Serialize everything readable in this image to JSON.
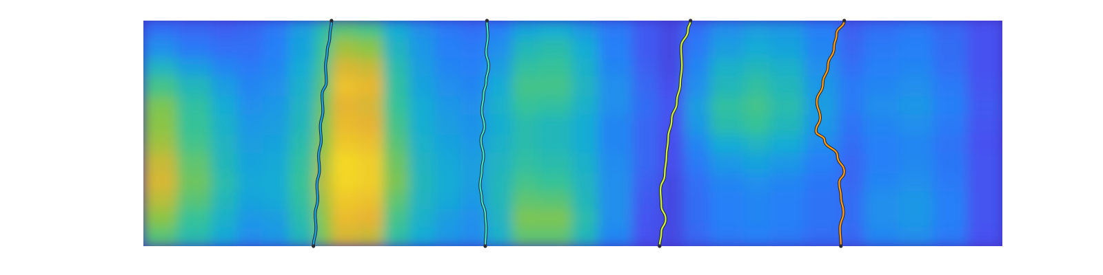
{
  "chart_data": {
    "type": "heatmap",
    "title": "",
    "xlabel": "",
    "ylabel": "",
    "colormap": "parula",
    "axes_visible": false,
    "grid": false,
    "legend": "none",
    "xlim": [
      0,
      1
    ],
    "ylim": [
      0,
      1
    ],
    "heatmap": {
      "columns": [
        0.0,
        0.04,
        0.08,
        0.11,
        0.14,
        0.17,
        0.2,
        0.22,
        0.25,
        0.28,
        0.31,
        0.34,
        0.37,
        0.4,
        0.43,
        0.46,
        0.5,
        0.53,
        0.57,
        0.6,
        0.63,
        0.66,
        0.7,
        0.73,
        0.77,
        0.81,
        0.84,
        0.88,
        0.92,
        0.96,
        1.0
      ],
      "rows": [
        0.0,
        0.08,
        0.17,
        0.25,
        0.34,
        0.42,
        0.51,
        0.59,
        0.68,
        0.76,
        0.84,
        0.92,
        1.0
      ],
      "values": [
        [
          0.25,
          0.22,
          0.2,
          0.22,
          0.28,
          0.4,
          0.55,
          0.65,
          0.62,
          0.45,
          0.35,
          0.28,
          0.25,
          0.3,
          0.42,
          0.45,
          0.38,
          0.28,
          0.18,
          0.12,
          0.25,
          0.35,
          0.4,
          0.38,
          0.3,
          0.2,
          0.25,
          0.28,
          0.22,
          0.15,
          0.12
        ],
        [
          0.35,
          0.28,
          0.25,
          0.25,
          0.3,
          0.42,
          0.6,
          0.75,
          0.72,
          0.5,
          0.38,
          0.3,
          0.28,
          0.35,
          0.52,
          0.55,
          0.45,
          0.3,
          0.18,
          0.12,
          0.28,
          0.4,
          0.45,
          0.42,
          0.32,
          0.22,
          0.28,
          0.3,
          0.24,
          0.15,
          0.12
        ],
        [
          0.5,
          0.4,
          0.32,
          0.28,
          0.32,
          0.45,
          0.62,
          0.82,
          0.8,
          0.55,
          0.4,
          0.32,
          0.3,
          0.4,
          0.58,
          0.6,
          0.48,
          0.32,
          0.2,
          0.12,
          0.32,
          0.48,
          0.52,
          0.48,
          0.35,
          0.25,
          0.3,
          0.32,
          0.25,
          0.15,
          0.12
        ],
        [
          0.62,
          0.52,
          0.4,
          0.32,
          0.35,
          0.48,
          0.65,
          0.88,
          0.85,
          0.58,
          0.42,
          0.35,
          0.32,
          0.45,
          0.62,
          0.62,
          0.5,
          0.35,
          0.22,
          0.14,
          0.35,
          0.52,
          0.58,
          0.52,
          0.38,
          0.28,
          0.32,
          0.35,
          0.28,
          0.16,
          0.12
        ],
        [
          0.7,
          0.58,
          0.45,
          0.35,
          0.38,
          0.5,
          0.68,
          0.84,
          0.82,
          0.6,
          0.45,
          0.38,
          0.35,
          0.48,
          0.6,
          0.58,
          0.48,
          0.35,
          0.24,
          0.16,
          0.4,
          0.58,
          0.62,
          0.55,
          0.4,
          0.28,
          0.35,
          0.38,
          0.3,
          0.18,
          0.12
        ],
        [
          0.72,
          0.6,
          0.48,
          0.38,
          0.4,
          0.52,
          0.7,
          0.86,
          0.84,
          0.62,
          0.46,
          0.4,
          0.36,
          0.46,
          0.55,
          0.52,
          0.45,
          0.32,
          0.22,
          0.15,
          0.38,
          0.55,
          0.6,
          0.52,
          0.38,
          0.26,
          0.32,
          0.35,
          0.28,
          0.16,
          0.12
        ],
        [
          0.75,
          0.62,
          0.5,
          0.4,
          0.42,
          0.55,
          0.72,
          0.9,
          0.88,
          0.65,
          0.48,
          0.42,
          0.38,
          0.48,
          0.55,
          0.52,
          0.45,
          0.32,
          0.22,
          0.14,
          0.32,
          0.45,
          0.5,
          0.45,
          0.34,
          0.24,
          0.3,
          0.32,
          0.26,
          0.15,
          0.12
        ],
        [
          0.8,
          0.66,
          0.52,
          0.42,
          0.44,
          0.58,
          0.76,
          0.95,
          0.92,
          0.68,
          0.5,
          0.44,
          0.4,
          0.5,
          0.58,
          0.55,
          0.48,
          0.34,
          0.22,
          0.14,
          0.28,
          0.38,
          0.42,
          0.38,
          0.3,
          0.22,
          0.3,
          0.33,
          0.27,
          0.16,
          0.12
        ],
        [
          0.82,
          0.68,
          0.55,
          0.44,
          0.45,
          0.6,
          0.78,
          0.94,
          0.92,
          0.7,
          0.52,
          0.45,
          0.4,
          0.52,
          0.62,
          0.6,
          0.5,
          0.35,
          0.2,
          0.12,
          0.25,
          0.32,
          0.35,
          0.32,
          0.27,
          0.22,
          0.32,
          0.35,
          0.28,
          0.16,
          0.12
        ],
        [
          0.78,
          0.65,
          0.52,
          0.42,
          0.44,
          0.58,
          0.75,
          0.9,
          0.88,
          0.66,
          0.5,
          0.44,
          0.38,
          0.52,
          0.66,
          0.65,
          0.52,
          0.35,
          0.18,
          0.12,
          0.24,
          0.3,
          0.32,
          0.3,
          0.26,
          0.24,
          0.35,
          0.38,
          0.3,
          0.16,
          0.12
        ],
        [
          0.72,
          0.6,
          0.48,
          0.38,
          0.4,
          0.55,
          0.72,
          0.86,
          0.84,
          0.62,
          0.48,
          0.4,
          0.35,
          0.5,
          0.7,
          0.7,
          0.55,
          0.35,
          0.16,
          0.12,
          0.24,
          0.3,
          0.32,
          0.3,
          0.26,
          0.24,
          0.35,
          0.38,
          0.3,
          0.16,
          0.12
        ],
        [
          0.65,
          0.55,
          0.44,
          0.35,
          0.38,
          0.52,
          0.7,
          0.82,
          0.8,
          0.58,
          0.45,
          0.38,
          0.34,
          0.48,
          0.66,
          0.66,
          0.52,
          0.32,
          0.15,
          0.12,
          0.22,
          0.28,
          0.3,
          0.28,
          0.24,
          0.22,
          0.32,
          0.35,
          0.28,
          0.15,
          0.12
        ],
        [
          0.58,
          0.5,
          0.4,
          0.32,
          0.35,
          0.5,
          0.68,
          0.8,
          0.78,
          0.55,
          0.42,
          0.36,
          0.32,
          0.45,
          0.6,
          0.6,
          0.48,
          0.3,
          0.14,
          0.12,
          0.2,
          0.26,
          0.28,
          0.26,
          0.22,
          0.2,
          0.3,
          0.32,
          0.26,
          0.15,
          0.12
        ]
      ]
    },
    "series": [
      {
        "color": "#1ca3dc",
        "points": [
          [
            0.219,
            0.0
          ],
          [
            0.217,
            0.07
          ],
          [
            0.214,
            0.14
          ],
          [
            0.212,
            0.2
          ],
          [
            0.213,
            0.27
          ],
          [
            0.208,
            0.33
          ],
          [
            0.209,
            0.4
          ],
          [
            0.206,
            0.47
          ],
          [
            0.207,
            0.53
          ],
          [
            0.204,
            0.6
          ],
          [
            0.205,
            0.66
          ],
          [
            0.202,
            0.73
          ],
          [
            0.203,
            0.79
          ],
          [
            0.2,
            0.86
          ],
          [
            0.201,
            0.92
          ],
          [
            0.198,
            1.0
          ]
        ]
      },
      {
        "color": "#40e0c8",
        "points": [
          [
            0.4,
            0.0
          ],
          [
            0.401,
            0.07
          ],
          [
            0.399,
            0.14
          ],
          [
            0.402,
            0.2
          ],
          [
            0.399,
            0.27
          ],
          [
            0.396,
            0.33
          ],
          [
            0.394,
            0.4
          ],
          [
            0.397,
            0.47
          ],
          [
            0.393,
            0.53
          ],
          [
            0.396,
            0.6
          ],
          [
            0.394,
            0.66
          ],
          [
            0.392,
            0.73
          ],
          [
            0.394,
            0.79
          ],
          [
            0.398,
            0.86
          ],
          [
            0.399,
            0.92
          ],
          [
            0.398,
            1.0
          ]
        ]
      },
      {
        "color": "#ccf040",
        "points": [
          [
            0.637,
            0.0
          ],
          [
            0.634,
            0.04
          ],
          [
            0.626,
            0.12
          ],
          [
            0.627,
            0.2
          ],
          [
            0.625,
            0.28
          ],
          [
            0.621,
            0.36
          ],
          [
            0.615,
            0.44
          ],
          [
            0.611,
            0.52
          ],
          [
            0.609,
            0.6
          ],
          [
            0.607,
            0.68
          ],
          [
            0.602,
            0.75
          ],
          [
            0.603,
            0.82
          ],
          [
            0.608,
            0.88
          ],
          [
            0.603,
            0.94
          ],
          [
            0.601,
            1.0
          ]
        ]
      },
      {
        "color": "#ff9a12",
        "points": [
          [
            0.816,
            0.0
          ],
          [
            0.807,
            0.06
          ],
          [
            0.804,
            0.12
          ],
          [
            0.797,
            0.2
          ],
          [
            0.791,
            0.28
          ],
          [
            0.784,
            0.36
          ],
          [
            0.788,
            0.43
          ],
          [
            0.783,
            0.49
          ],
          [
            0.793,
            0.53
          ],
          [
            0.808,
            0.6
          ],
          [
            0.816,
            0.67
          ],
          [
            0.81,
            0.72
          ],
          [
            0.812,
            0.78
          ],
          [
            0.815,
            0.85
          ],
          [
            0.811,
            0.92
          ],
          [
            0.812,
            1.0
          ]
        ]
      }
    ]
  }
}
